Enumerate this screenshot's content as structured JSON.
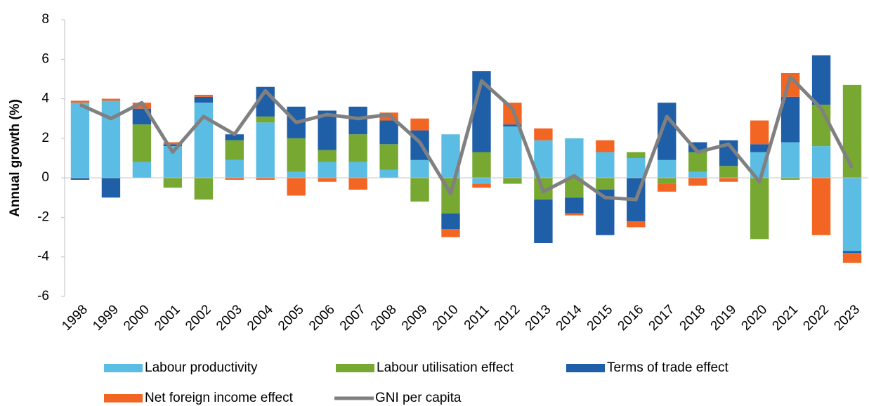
{
  "chart_data": {
    "type": "bar",
    "stacked": true,
    "y_label": "Annual growth (%)",
    "categories": [
      "1998",
      "1999",
      "2000",
      "2001",
      "2002",
      "2003",
      "2004",
      "2005",
      "2006",
      "2007",
      "2008",
      "2009",
      "2010",
      "2011",
      "2012",
      "2013",
      "2014",
      "2015",
      "2016",
      "2017",
      "2018",
      "2019",
      "2020",
      "2021",
      "2022",
      "2023"
    ],
    "series": [
      {
        "name": "Labour productivity",
        "color": "#5bbde4",
        "values": [
          3.8,
          3.9,
          0.8,
          1.6,
          3.8,
          0.9,
          2.8,
          0.3,
          0.8,
          0.8,
          0.4,
          0.9,
          2.2,
          -0.3,
          2.6,
          1.9,
          2.0,
          1.3,
          1.0,
          0.9,
          0.3,
          0,
          1.3,
          1.8,
          1.6,
          -3.7
        ]
      },
      {
        "name": "Labour utilisation effect",
        "color": "#77a832",
        "values": [
          0,
          0,
          1.9,
          -0.5,
          -1.1,
          1.0,
          0.3,
          1.7,
          0.6,
          1.4,
          1.3,
          -1.2,
          -1.8,
          1.3,
          -0.3,
          -1.1,
          -1.0,
          -0.6,
          0.3,
          -0.3,
          1.0,
          0.6,
          -3.1,
          -0.1,
          2.1,
          4.7
        ]
      },
      {
        "name": "Terms of trade effect",
        "color": "#1f5fa8",
        "values": [
          -0.1,
          -1.0,
          0.8,
          0.1,
          0.3,
          0.3,
          1.5,
          1.6,
          2.0,
          1.4,
          1.2,
          1.5,
          -0.8,
          4.1,
          0.1,
          -2.2,
          -0.8,
          -2.3,
          -2.2,
          2.9,
          0.5,
          1.3,
          0.4,
          2.3,
          2.5,
          -0.1
        ]
      },
      {
        "name": "Net foreign income effect",
        "color": "#f26522",
        "values": [
          0.1,
          0.1,
          0.3,
          0.1,
          0.1,
          -0.1,
          -0.1,
          -0.9,
          -0.2,
          -0.6,
          0.4,
          0.6,
          -0.4,
          -0.2,
          1.1,
          0.6,
          -0.1,
          0.6,
          -0.3,
          -0.4,
          -0.4,
          -0.2,
          1.2,
          1.2,
          -2.9,
          -0.5
        ]
      },
      {
        "name": "GNI per capita",
        "color": "#808080",
        "type": "line",
        "values": [
          3.7,
          3.0,
          3.8,
          1.3,
          3.1,
          2.2,
          4.4,
          2.8,
          3.2,
          3.0,
          3.2,
          1.8,
          -0.8,
          4.9,
          3.5,
          -0.7,
          0.1,
          -1.0,
          -1.1,
          3.1,
          1.3,
          1.7,
          -0.2,
          5.1,
          3.5,
          0.5
        ]
      }
    ],
    "ylim": [
      -6,
      8
    ],
    "yticks": [
      -6,
      -4,
      -2,
      0,
      2,
      4,
      6,
      8
    ],
    "grid": false
  }
}
